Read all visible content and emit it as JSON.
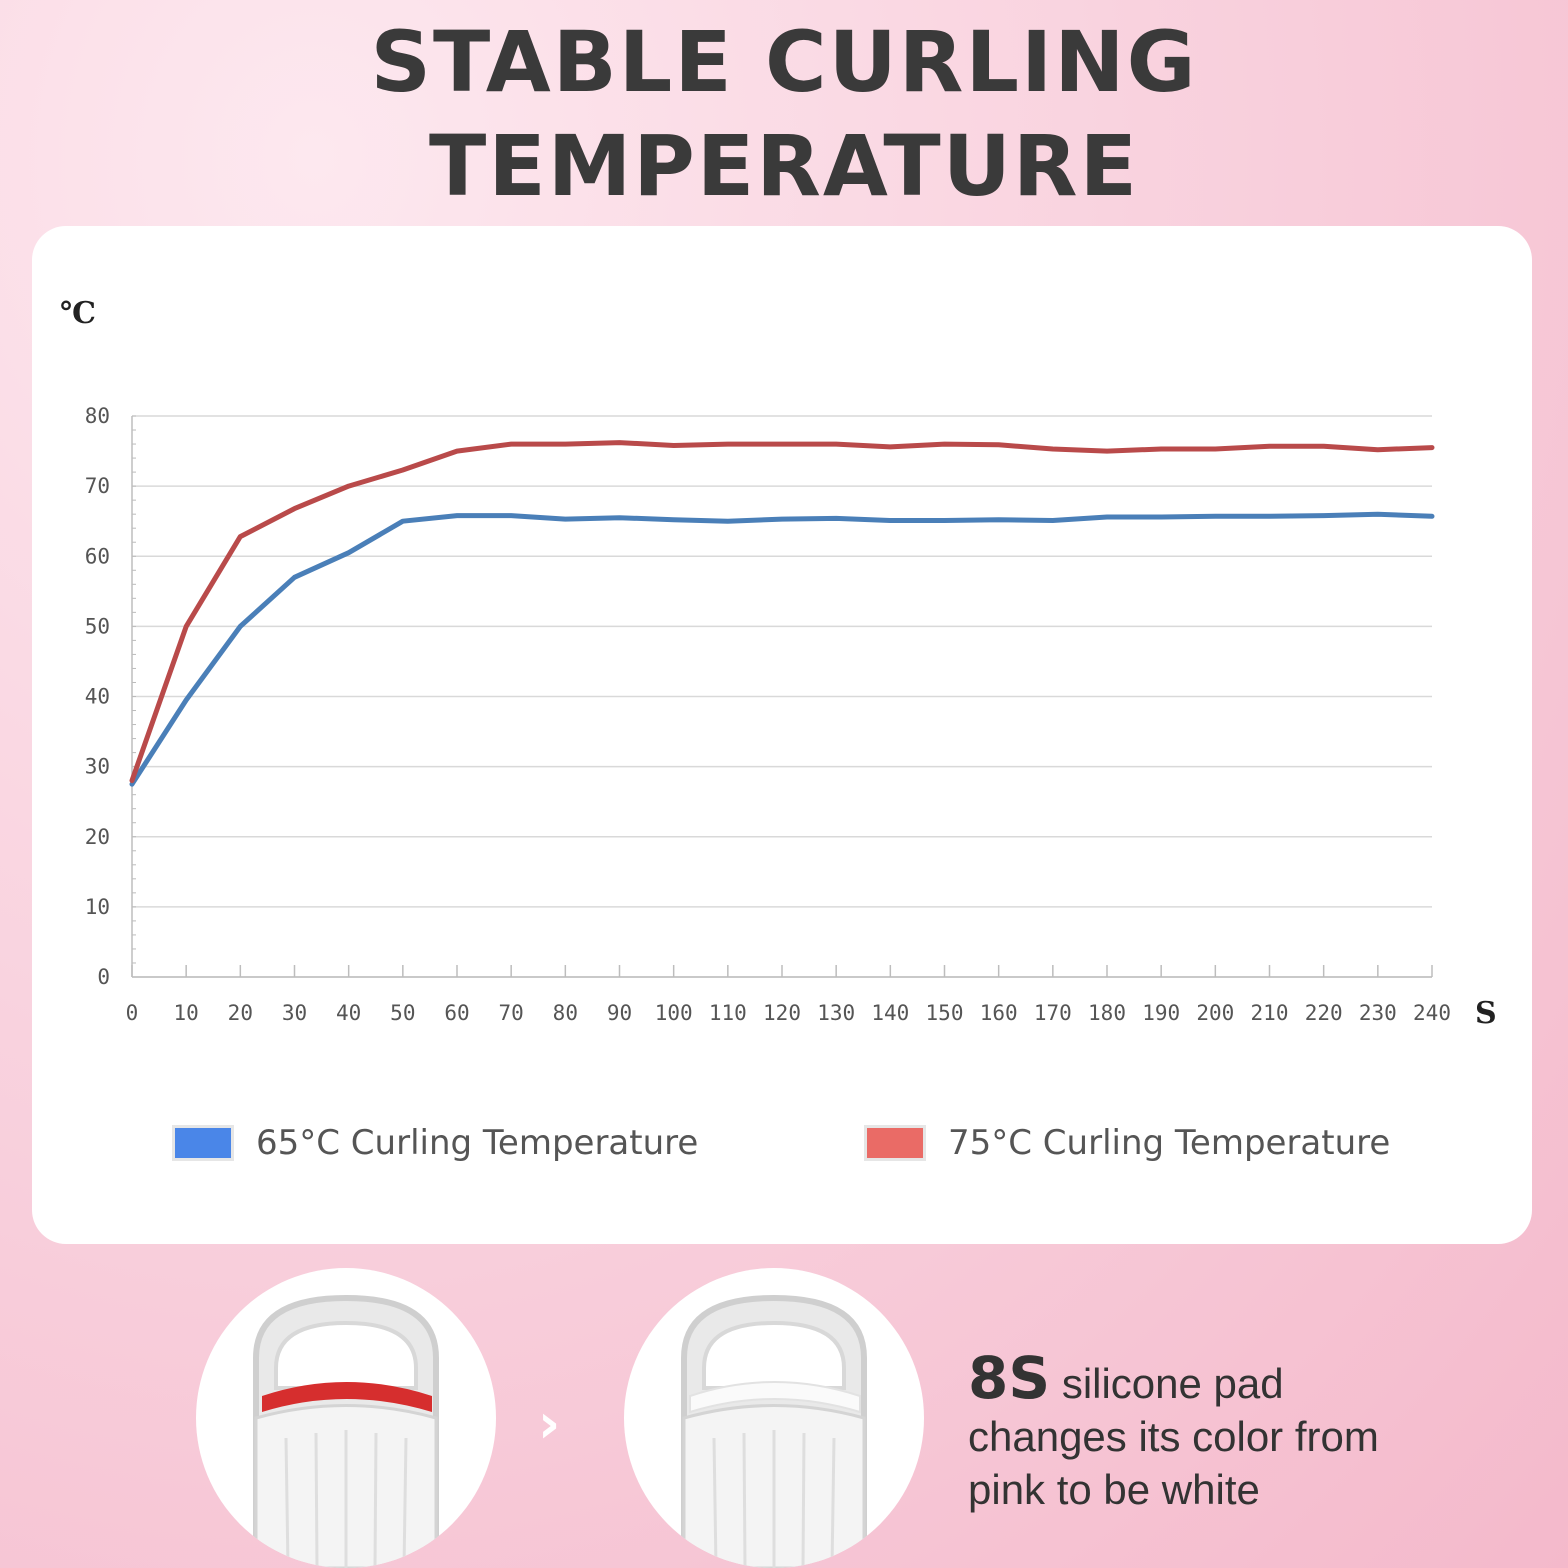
{
  "header": {
    "line1": "STABLE CURLING",
    "line2": "TEMPERATURE"
  },
  "chart_data": {
    "type": "line",
    "title": "",
    "ylabel": "℃",
    "xlabel": "S",
    "xlim": [
      0,
      240
    ],
    "ylim": [
      0,
      80
    ],
    "grid": true,
    "legend_placement": "bottom",
    "x": [
      0,
      10,
      20,
      30,
      40,
      50,
      60,
      70,
      80,
      90,
      100,
      110,
      120,
      130,
      140,
      150,
      160,
      170,
      180,
      190,
      200,
      210,
      220,
      230,
      240
    ],
    "x_ticks": [
      "0",
      "10",
      "20",
      "30",
      "40",
      "50",
      "60",
      "70",
      "80",
      "90",
      "100",
      "110",
      "120",
      "130",
      "140",
      "150",
      "160",
      "170",
      "180",
      "190",
      "200",
      "210",
      "220",
      "230",
      "240"
    ],
    "y_ticks": [
      "0",
      "10",
      "20",
      "30",
      "40",
      "50",
      "60",
      "70",
      "80"
    ],
    "series": [
      {
        "name": "65°C  Curling Temperature",
        "color": "#4a7fb8",
        "values": [
          27.5,
          39.5,
          50,
          57,
          60.5,
          65,
          65.8,
          65.8,
          65.3,
          65.5,
          65.2,
          65,
          65.3,
          65.4,
          65.1,
          65.1,
          65.2,
          65.1,
          65.6,
          65.6,
          65.7,
          65.7,
          65.8,
          66,
          65.7
        ]
      },
      {
        "name": "75°C Curling Temperature",
        "color": "#b94a4a",
        "values": [
          28,
          50,
          62.8,
          66.8,
          70,
          72.3,
          75,
          76,
          76,
          76.2,
          75.8,
          76,
          76,
          76,
          75.6,
          76,
          75.9,
          75.3,
          75,
          75.3,
          75.3,
          75.7,
          75.7,
          75.2,
          75.5
        ]
      }
    ],
    "legend_swatch_colors": [
      "#4a86e8",
      "#ea6b66"
    ]
  },
  "caption": {
    "bold": "8S",
    "rest": "silicone pad",
    "line2": "changes its color from",
    "line3": "pink to be white"
  },
  "decor": {
    "arrow_icon": "chevron-right-icon",
    "product_icon": "eyelash-curler-icon"
  }
}
